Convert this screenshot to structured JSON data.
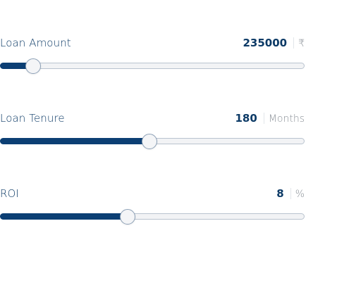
{
  "loan_amount": {
    "label": "Loan Amount",
    "value": "235000",
    "unit": "₹",
    "fill_fraction": 0.106
  },
  "loan_tenure": {
    "label": "Loan Tenure",
    "value": "180",
    "unit": "Months",
    "fill_fraction": 0.491
  },
  "roi": {
    "label": "ROI",
    "value": "8",
    "unit": "%",
    "fill_fraction": 0.419
  },
  "colors": {
    "accent": "#0c3f74",
    "text": "#0c3a66",
    "muted": "#8a9097",
    "track": "#f2f3f5"
  }
}
